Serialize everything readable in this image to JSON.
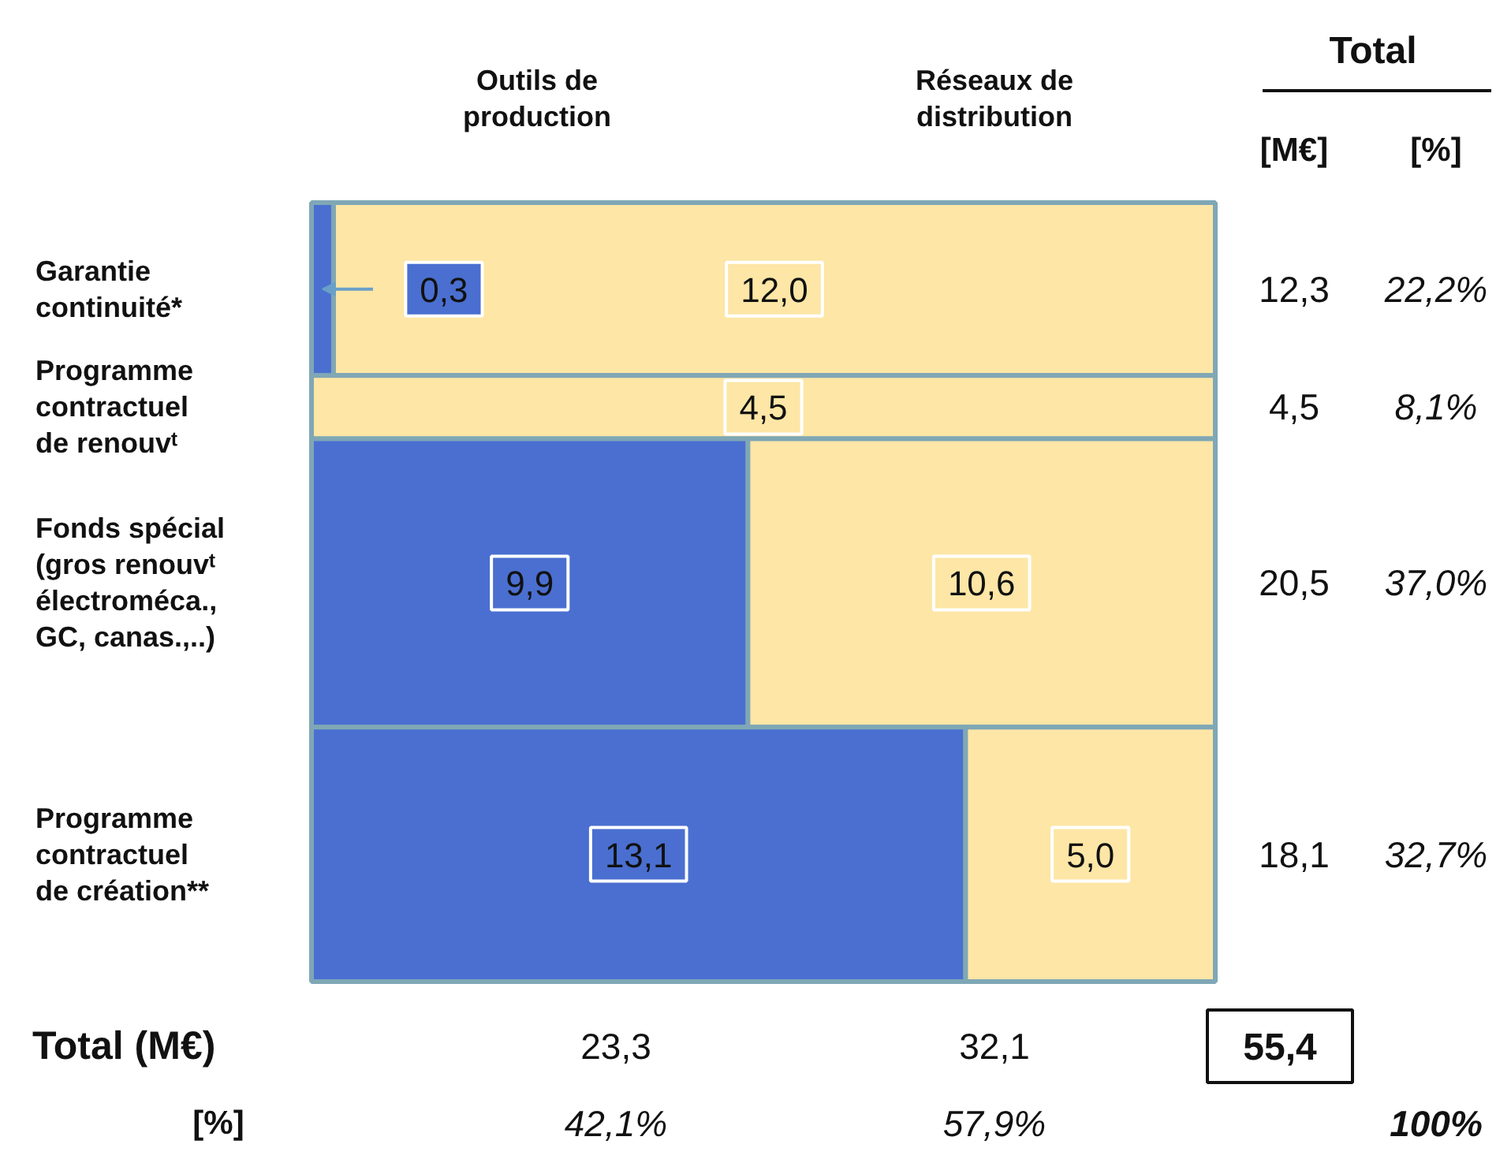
{
  "chart_data": {
    "type": "other",
    "categories": [
      "Garantie\ncontinuité*",
      "Programme\ncontractuel\nde renouvᵗ",
      "Fonds spécial\n(gros renouvᵗ\nélectroméca.,\nGC, canas.,..)",
      "Programme\ncontractuel\nde création**"
    ],
    "series": [
      {
        "color": "#4a6fd0",
        "values": [
          0.3,
          null,
          9.9,
          13.1
        ],
        "value_labels": [
          "0,3",
          null,
          "9,9",
          "13,1"
        ]
      },
      {
        "color": "#fde6a6",
        "values": [
          12.0,
          4.5,
          10.6,
          5.0
        ],
        "value_labels": [
          "12,0",
          "4,5",
          "10,6",
          "5,0"
        ]
      }
    ],
    "totals": [
      "12,3",
      "4,5",
      "20,5",
      "18,1"
    ],
    "annotations": [
      "Outils de\nproduction",
      "Réseaux de\ndistribution",
      "Total",
      "[M€]",
      "[%]",
      "22,2%",
      "8,1%",
      "37,0%",
      "32,7%",
      "Total (M€)",
      "[%]",
      "23,3",
      "32,1",
      "42,1%",
      "57,9%",
      "55,4",
      "100%"
    ]
  }
}
